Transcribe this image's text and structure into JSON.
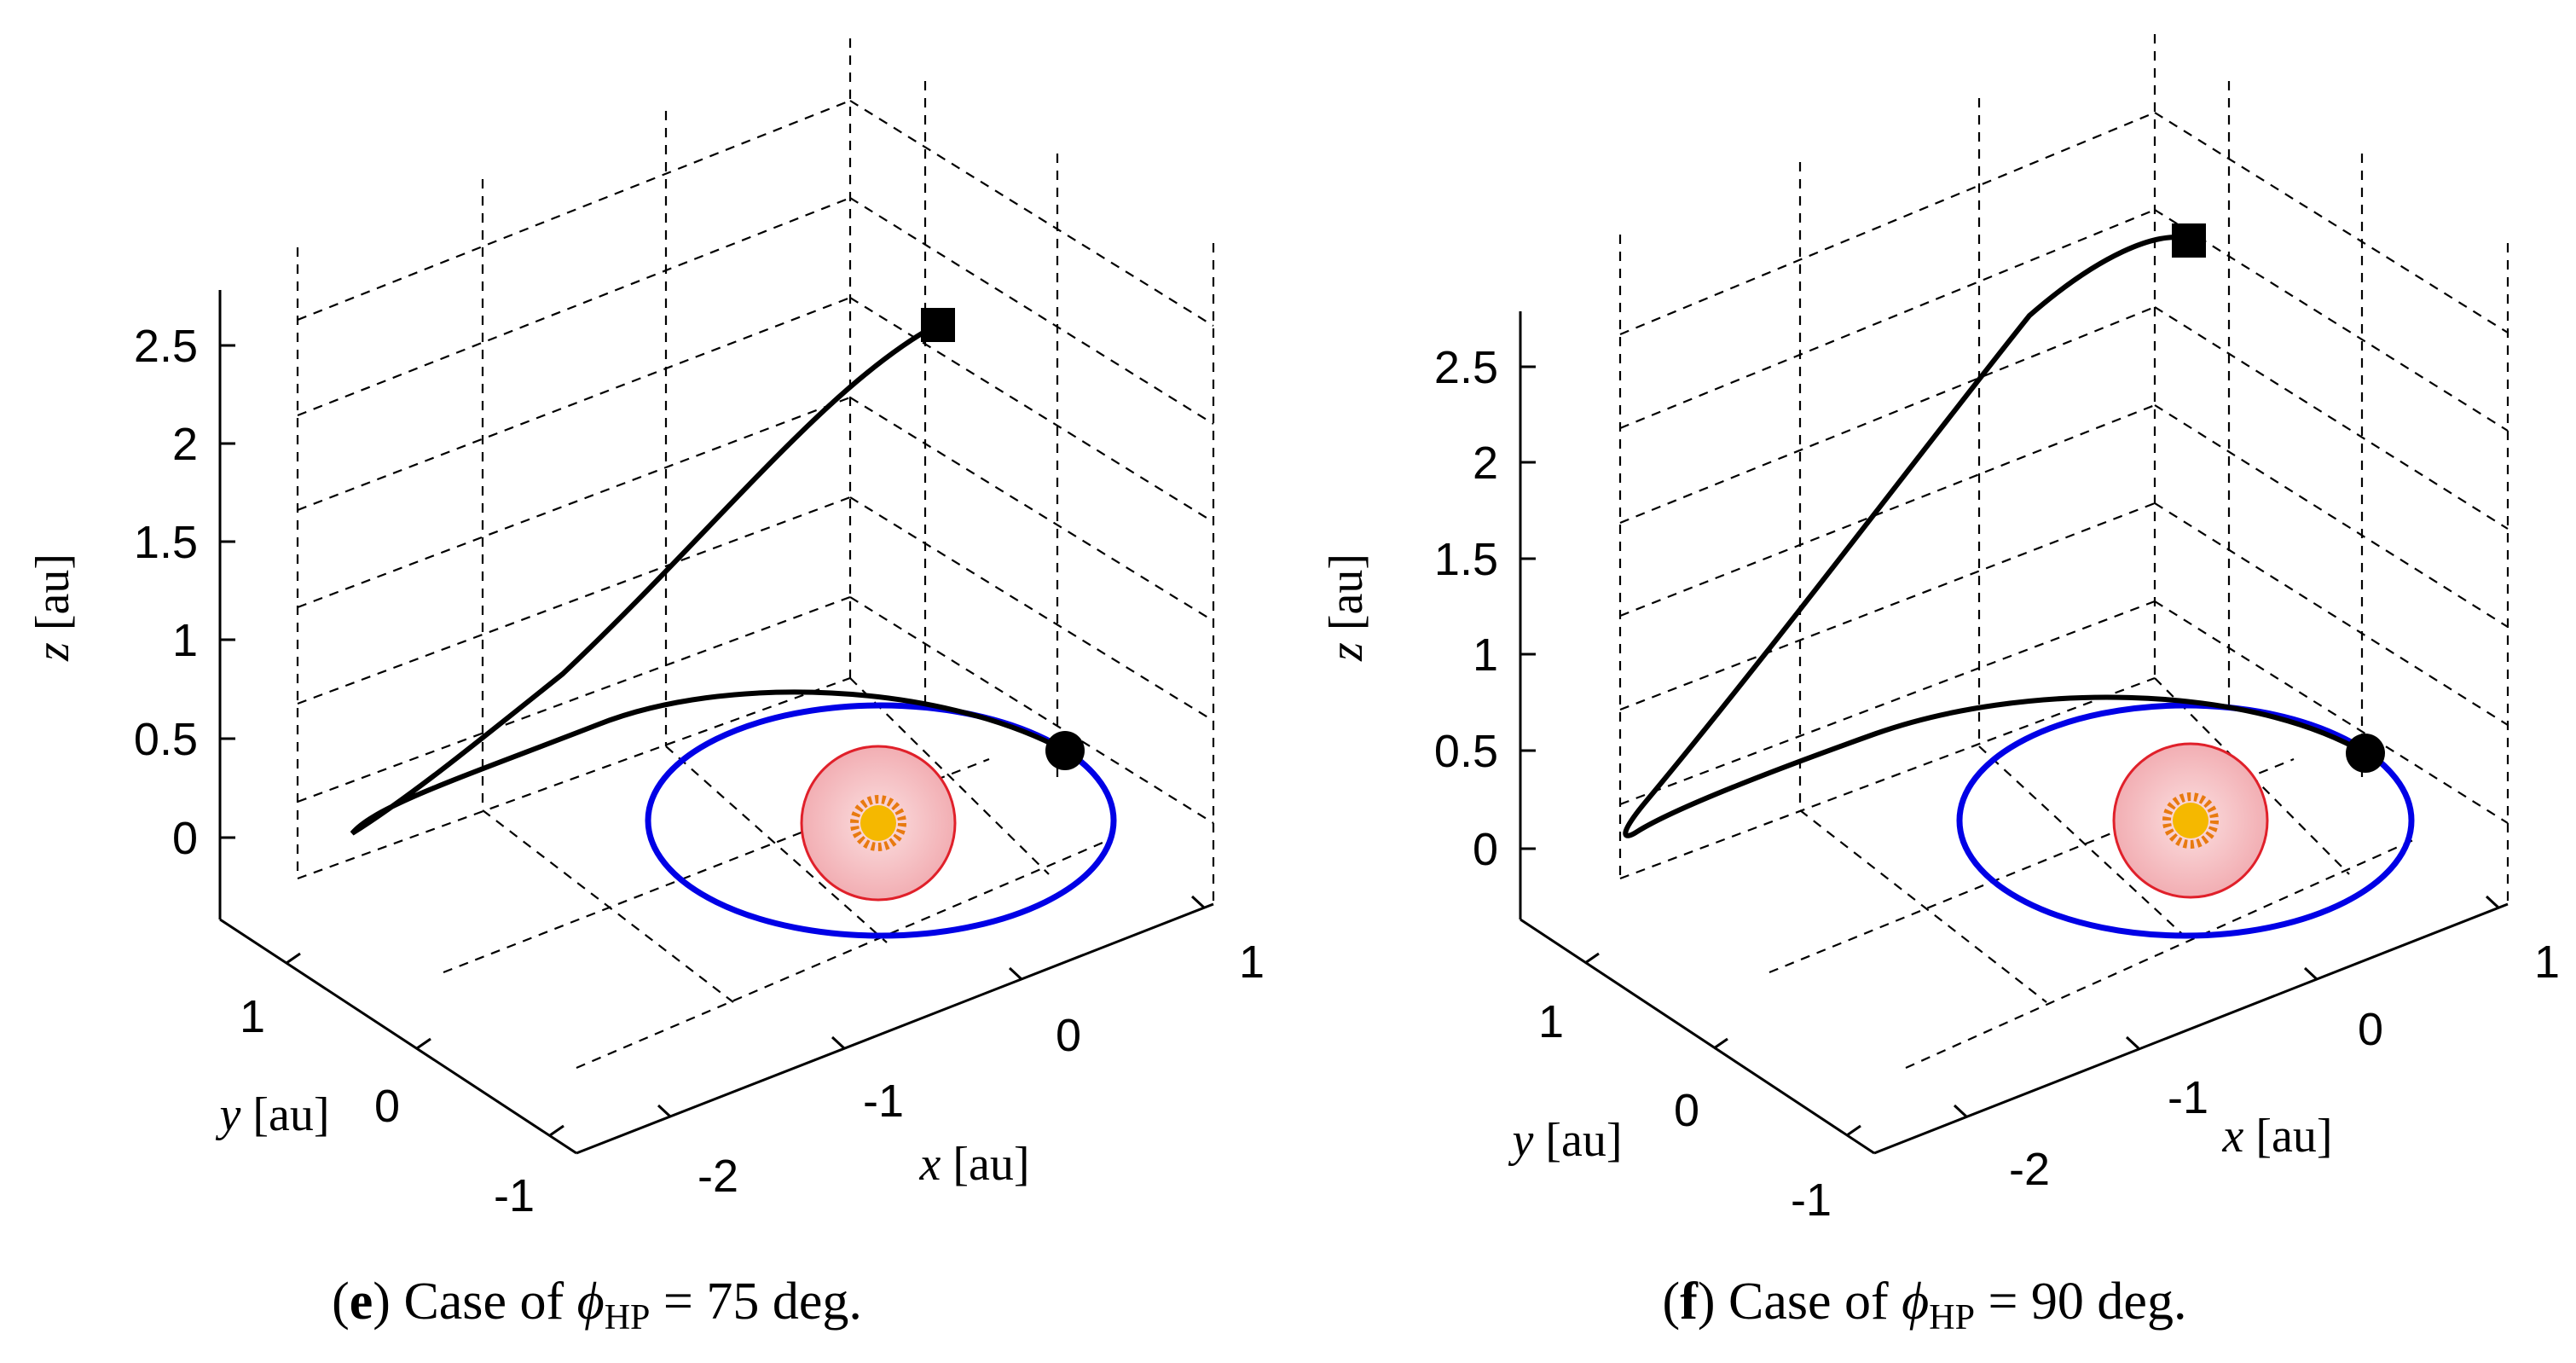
{
  "chart_data": [
    {
      "type": "line",
      "projection": "3d",
      "caption": {
        "letter": "e",
        "prefix": "Case of ",
        "symbol": "ϕ",
        "subscript": "HP",
        "suffix": " = 75 deg."
      },
      "axes": {
        "x": {
          "var": "x",
          "unit": "[au]",
          "ticks": [
            "-2",
            "-1",
            "0",
            "1"
          ],
          "range": [
            -2.5,
            1.1
          ]
        },
        "y": {
          "var": "y",
          "unit": "[au]",
          "ticks": [
            "-1",
            "0",
            "1"
          ],
          "range": [
            -1.1,
            1.4
          ]
        },
        "z": {
          "var": "z",
          "unit": "[au]",
          "ticks": [
            "0",
            "0.5",
            "1",
            "1.5",
            "2",
            "2.5"
          ],
          "range": [
            -0.2,
            2.8
          ]
        }
      },
      "grid": true,
      "series": [
        {
          "kind": "earth-orbit",
          "color": "#0000e6"
        },
        {
          "kind": "trajectory",
          "color": "#000000"
        }
      ],
      "markers": [
        {
          "kind": "start-circle",
          "x": 1.0,
          "y": 0.0,
          "z": 0.0
        },
        {
          "kind": "end-square",
          "x": 0.0,
          "y": 0.0,
          "z": 2.6
        }
      ]
    },
    {
      "type": "line",
      "projection": "3d",
      "caption": {
        "letter": "f",
        "prefix": "Case of ",
        "symbol": "ϕ",
        "subscript": "HP",
        "suffix": " = 90 deg."
      },
      "axes": {
        "x": {
          "var": "x",
          "unit": "[au]",
          "ticks": [
            "-2",
            "-1",
            "0",
            "1"
          ],
          "range": [
            -2.5,
            1.1
          ]
        },
        "y": {
          "var": "y",
          "unit": "[au]",
          "ticks": [
            "-1",
            "0",
            "1"
          ],
          "range": [
            -1.1,
            1.4
          ]
        },
        "z": {
          "var": "z",
          "unit": "[au]",
          "ticks": [
            "0",
            "0.5",
            "1",
            "1.5",
            "2",
            "2.5"
          ],
          "range": [
            -0.2,
            3.0
          ]
        }
      },
      "grid": true,
      "series": [
        {
          "kind": "earth-orbit",
          "color": "#0000e6"
        },
        {
          "kind": "trajectory",
          "color": "#000000"
        }
      ],
      "markers": [
        {
          "kind": "start-circle",
          "x": 1.0,
          "y": 0.0,
          "z": 0.0
        },
        {
          "kind": "end-square",
          "x": 0.0,
          "y": 0.0,
          "z": 2.9
        }
      ]
    }
  ],
  "colors": {
    "orbit": "#0000e6",
    "sun_halo_fill": "#f6c3c6",
    "sun_halo_edge": "#e0202a",
    "sun_core": "#f5b800",
    "sun_rays": "#e87a10"
  }
}
